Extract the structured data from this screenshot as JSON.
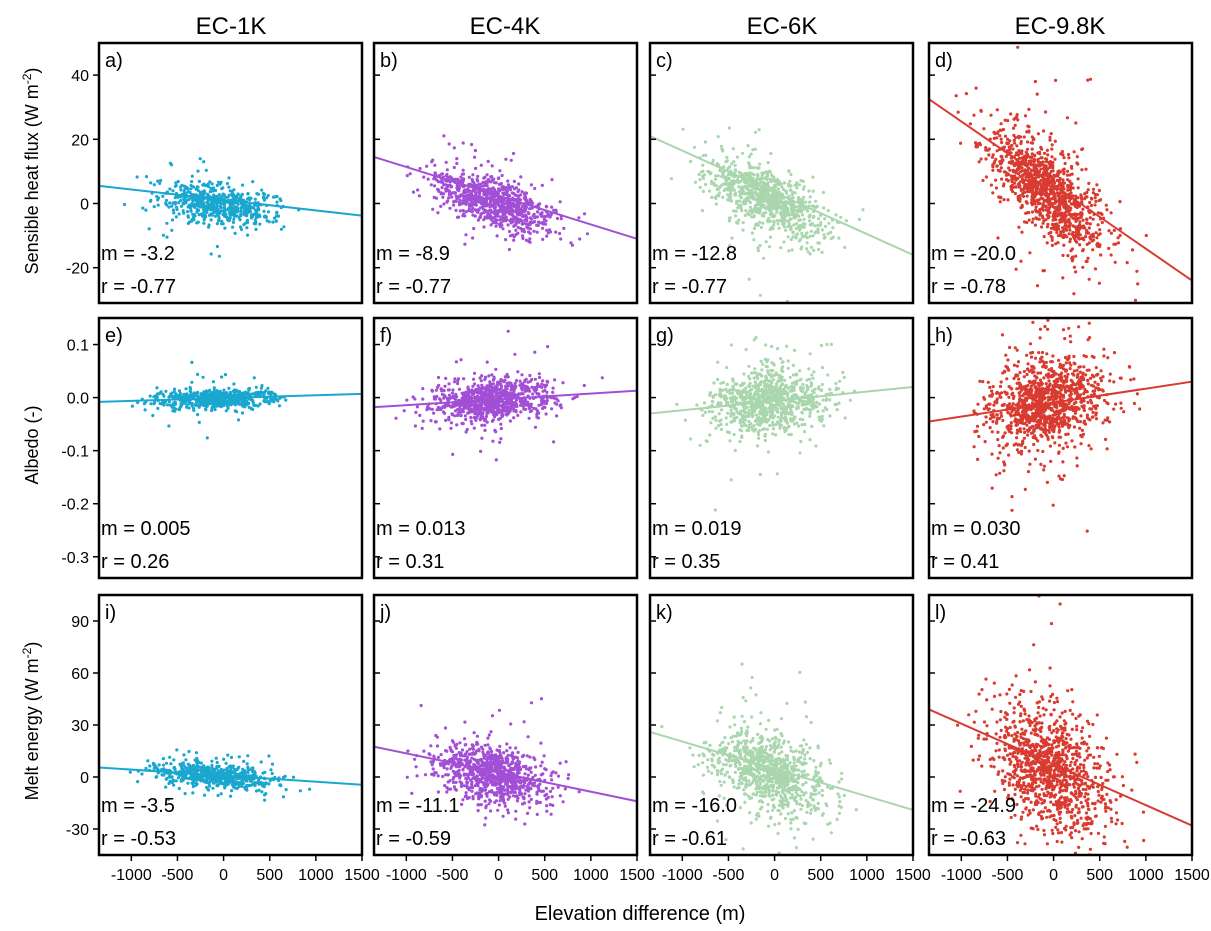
{
  "figure": {
    "column_titles": [
      "EC-1K",
      "EC-4K",
      "EC-6K",
      "EC-9.8K"
    ],
    "xlabel": "Elevation difference (m)",
    "row_ylabels": [
      {
        "main": "Sensible heat flux (W m",
        "sup": "-2",
        "tail": ")"
      },
      {
        "main": "Albedo (-)",
        "sup": "",
        "tail": ""
      },
      {
        "main": "Melt energy (W m",
        "sup": "-2",
        "tail": ")"
      }
    ],
    "colors": [
      "#1aa7cf",
      "#a24fd6",
      "#a9d6ad",
      "#d93b31"
    ]
  },
  "chart_data": [
    {
      "type": "scatter",
      "panel": "a)",
      "column": "EC-1K",
      "row": "Sensible heat flux",
      "xlim": [
        -1350,
        1500
      ],
      "ylim": [
        -31,
        50
      ],
      "yticks": [
        -20,
        0,
        20,
        40
      ],
      "xticks": [
        -1000,
        -500,
        0,
        500,
        1000,
        1500
      ],
      "slope_label": "m = -3.2",
      "r_label": "r = -0.77",
      "fit": {
        "x": [
          -1350,
          1500
        ],
        "y": [
          5.5,
          -3.8
        ]
      },
      "scatter": {
        "center": [
          -70,
          0
        ],
        "xspread": 580,
        "yspread": 3.0,
        "slope_per_m": -0.0032,
        "n": 600
      },
      "color": "#1aa7cf"
    },
    {
      "type": "scatter",
      "panel": "b)",
      "column": "EC-4K",
      "row": "Sensible heat flux",
      "xlim": [
        -1350,
        1500
      ],
      "ylim": [
        -31,
        50
      ],
      "yticks": [
        -20,
        0,
        20,
        40
      ],
      "xticks": [
        -1000,
        -500,
        0,
        500,
        1000,
        1500
      ],
      "slope_label": "m = -8.9",
      "r_label": "r = -0.77",
      "fit": {
        "x": [
          -1350,
          1500
        ],
        "y": [
          14.5,
          -11
        ]
      },
      "scatter": {
        "center": [
          -70,
          0.5
        ],
        "xspread": 580,
        "yspread": 3.5,
        "slope_per_m": -0.0089,
        "n": 900
      },
      "color": "#a24fd6"
    },
    {
      "type": "scatter",
      "panel": "c)",
      "column": "EC-6K",
      "row": "Sensible heat flux",
      "xlim": [
        -1350,
        1500
      ],
      "ylim": [
        -31,
        50
      ],
      "yticks": [
        -20,
        0,
        20,
        40
      ],
      "xticks": [
        -1000,
        -500,
        0,
        500,
        1000,
        1500
      ],
      "slope_label": "m = -12.8",
      "r_label": "r = -0.77",
      "fit": {
        "x": [
          -1350,
          1500
        ],
        "y": [
          21,
          -16
        ]
      },
      "scatter": {
        "center": [
          -70,
          1
        ],
        "xspread": 580,
        "yspread": 4.5,
        "slope_per_m": -0.0128,
        "n": 900
      },
      "color": "#a9d6ad"
    },
    {
      "type": "scatter",
      "panel": "d)",
      "column": "EC-9.8K",
      "row": "Sensible heat flux",
      "xlim": [
        -1350,
        1500
      ],
      "ylim": [
        -31,
        50
      ],
      "yticks": [
        -20,
        0,
        20,
        40
      ],
      "xticks": [
        -1000,
        -500,
        0,
        500,
        1000,
        1500
      ],
      "slope_label": "m = -20.0",
      "r_label": "r = -0.78",
      "fit": {
        "x": [
          -1350,
          1500
        ],
        "y": [
          32.5,
          -24
        ]
      },
      "scatter": {
        "center": [
          -70,
          4
        ],
        "xspread": 580,
        "yspread": 6.5,
        "slope_per_m": -0.02,
        "n": 1100
      },
      "color": "#d93b31"
    },
    {
      "type": "scatter",
      "panel": "e)",
      "column": "EC-1K",
      "row": "Albedo",
      "xlim": [
        -1350,
        1500
      ],
      "ylim": [
        -0.34,
        0.15
      ],
      "yticks": [
        -0.3,
        -0.2,
        -0.1,
        0.0,
        0.1
      ],
      "ytick_labels": [
        "-0.3",
        "-0.2",
        "-0.1",
        "0.0",
        "0.1"
      ],
      "xticks": [
        -1000,
        -500,
        0,
        500,
        1000,
        1500
      ],
      "slope_label": "m = 0.005",
      "r_label": "r = 0.26",
      "fit": {
        "x": [
          -1350,
          1500
        ],
        "y": [
          -0.008,
          0.007
        ]
      },
      "scatter": {
        "center": [
          -70,
          -0.002
        ],
        "xspread": 580,
        "yspread": 0.009,
        "slope_per_m": 5e-06,
        "n": 600
      },
      "color": "#1aa7cf"
    },
    {
      "type": "scatter",
      "panel": "f)",
      "column": "EC-4K",
      "row": "Albedo",
      "xlim": [
        -1350,
        1500
      ],
      "ylim": [
        -0.34,
        0.15
      ],
      "yticks": [
        -0.3,
        -0.2,
        -0.1,
        0.0,
        0.1
      ],
      "ytick_labels": [
        "-0.3",
        "-0.2",
        "-0.1",
        "0.0",
        "0.1"
      ],
      "xticks": [
        -1000,
        -500,
        0,
        500,
        1000,
        1500
      ],
      "slope_label": "m = 0.013",
      "r_label": "r = 0.31",
      "fit": {
        "x": [
          -1350,
          1500
        ],
        "y": [
          -0.018,
          0.013
        ]
      },
      "scatter": {
        "center": [
          -70,
          -0.005
        ],
        "xspread": 580,
        "yspread": 0.02,
        "slope_per_m": 1.3e-05,
        "n": 900
      },
      "color": "#a24fd6"
    },
    {
      "type": "scatter",
      "panel": "g)",
      "column": "EC-6K",
      "row": "Albedo",
      "xlim": [
        -1350,
        1500
      ],
      "ylim": [
        -0.34,
        0.15
      ],
      "yticks": [
        -0.3,
        -0.2,
        -0.1,
        0.0,
        0.1
      ],
      "ytick_labels": [
        "-0.3",
        "-0.2",
        "-0.1",
        "0.0",
        "0.1"
      ],
      "xticks": [
        -1000,
        -500,
        0,
        500,
        1000,
        1500
      ],
      "slope_label": "m = 0.019",
      "r_label": "r = 0.35",
      "fit": {
        "x": [
          -1350,
          1500
        ],
        "y": [
          -0.03,
          0.02
        ]
      },
      "scatter": {
        "center": [
          -70,
          -0.007
        ],
        "xspread": 580,
        "yspread": 0.028,
        "slope_per_m": 1.9e-05,
        "n": 900
      },
      "color": "#a9d6ad"
    },
    {
      "type": "scatter",
      "panel": "h)",
      "column": "EC-9.8K",
      "row": "Albedo",
      "xlim": [
        -1350,
        1500
      ],
      "ylim": [
        -0.34,
        0.15
      ],
      "yticks": [
        -0.3,
        -0.2,
        -0.1,
        0.0,
        0.1
      ],
      "ytick_labels": [
        "-0.3",
        "-0.2",
        "-0.1",
        "0.0",
        "0.1"
      ],
      "xticks": [
        -1000,
        -500,
        0,
        500,
        1000,
        1500
      ],
      "slope_label": "m = 0.030",
      "r_label": "r = 0.41",
      "fit": {
        "x": [
          -1350,
          1500
        ],
        "y": [
          -0.045,
          0.03
        ]
      },
      "scatter": {
        "center": [
          -70,
          -0.008
        ],
        "xspread": 580,
        "yspread": 0.04,
        "slope_per_m": 3e-05,
        "n": 1100
      },
      "color": "#d93b31"
    },
    {
      "type": "scatter",
      "panel": "i)",
      "column": "EC-1K",
      "row": "Melt energy",
      "xlim": [
        -1350,
        1500
      ],
      "ylim": [
        -45,
        105
      ],
      "yticks": [
        -30,
        0,
        30,
        60,
        90
      ],
      "xticks": [
        -1000,
        -500,
        0,
        500,
        1000,
        1500
      ],
      "slope_label": "m = -3.5",
      "r_label": "r = -0.53",
      "fit": {
        "x": [
          -1350,
          1500
        ],
        "y": [
          5.5,
          -4.5
        ]
      },
      "scatter": {
        "center": [
          -70,
          0.5
        ],
        "xspread": 580,
        "yspread": 3.5,
        "slope_per_m": -0.0035,
        "n": 600
      },
      "color": "#1aa7cf"
    },
    {
      "type": "scatter",
      "panel": "j)",
      "column": "EC-4K",
      "row": "Melt energy",
      "xlim": [
        -1350,
        1500
      ],
      "ylim": [
        -45,
        105
      ],
      "yticks": [
        -30,
        0,
        30,
        60,
        90
      ],
      "xticks": [
        -1000,
        -500,
        0,
        500,
        1000,
        1500
      ],
      "slope_label": "m = -11.1",
      "r_label": "r = -0.59",
      "fit": {
        "x": [
          -1350,
          1500
        ],
        "y": [
          17.5,
          -14
        ]
      },
      "scatter": {
        "center": [
          -70,
          1.5
        ],
        "xspread": 580,
        "yspread": 8,
        "slope_per_m": -0.0111,
        "n": 900
      },
      "color": "#a24fd6"
    },
    {
      "type": "scatter",
      "panel": "k)",
      "column": "EC-6K",
      "row": "Melt energy",
      "xlim": [
        -1350,
        1500
      ],
      "ylim": [
        -45,
        105
      ],
      "yticks": [
        -30,
        0,
        30,
        60,
        90
      ],
      "xticks": [
        -1000,
        -500,
        0,
        500,
        1000,
        1500
      ],
      "slope_label": "m = -16.0",
      "r_label": "r = -0.61",
      "fit": {
        "x": [
          -1350,
          1500
        ],
        "y": [
          26,
          -19
        ]
      },
      "scatter": {
        "center": [
          -70,
          3
        ],
        "xspread": 580,
        "yspread": 11,
        "slope_per_m": -0.016,
        "n": 900
      },
      "color": "#a9d6ad"
    },
    {
      "type": "scatter",
      "panel": "l)",
      "column": "EC-9.8K",
      "row": "Melt energy",
      "xlim": [
        -1350,
        1500
      ],
      "ylim": [
        -45,
        105
      ],
      "yticks": [
        -30,
        0,
        30,
        60,
        90
      ],
      "xticks": [
        -1000,
        -500,
        0,
        500,
        1000,
        1500
      ],
      "slope_label": "m = -24.9",
      "r_label": "r = -0.63",
      "fit": {
        "x": [
          -1350,
          1500
        ],
        "y": [
          39,
          -28
        ]
      },
      "scatter": {
        "center": [
          -70,
          5
        ],
        "xspread": 580,
        "yspread": 16,
        "slope_per_m": -0.0249,
        "n": 1100
      },
      "color": "#d93b31"
    }
  ]
}
